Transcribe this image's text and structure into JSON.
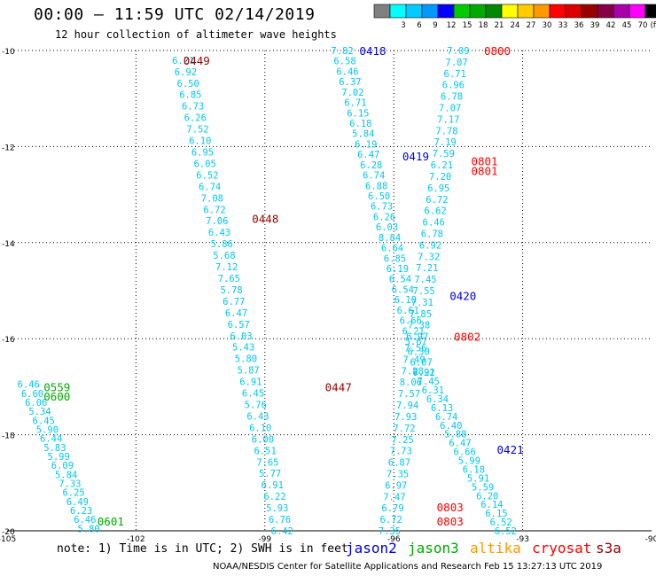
{
  "chart_data": {
    "type": "scatter",
    "title": "00:00 – 11:59 UTC 02/14/2019",
    "subtitle": "12 hour collection of altimeter wave heights",
    "note": "note: 1) Time is in UTC; 2) SWH is in feet",
    "credit": "NOAA/NESDIS Center for Satellite Applications and Research   Feb 15 13:27:13 UTC 2019",
    "xlim": [
      -105,
      -90
    ],
    "ylim": [
      -20,
      -10
    ],
    "xticks": [
      -105,
      -102,
      -99,
      -96,
      -93,
      -90
    ],
    "yticks": [
      -10,
      -12,
      -14,
      -16,
      -18,
      -20
    ],
    "grid": true,
    "colorbar": {
      "unit": "(ft)",
      "bins": [
        {
          "label": "",
          "color": "#808080"
        },
        {
          "label": "3",
          "color": "#00ffff"
        },
        {
          "label": "6",
          "color": "#00ccff"
        },
        {
          "label": "9",
          "color": "#0099ff"
        },
        {
          "label": "12",
          "color": "#0000ff"
        },
        {
          "label": "15",
          "color": "#00cc00"
        },
        {
          "label": "18",
          "color": "#00aa00"
        },
        {
          "label": "21",
          "color": "#008800"
        },
        {
          "label": "24",
          "color": "#ffff00"
        },
        {
          "label": "27",
          "color": "#ffcc00"
        },
        {
          "label": "30",
          "color": "#ff9900"
        },
        {
          "label": "33",
          "color": "#ff0000"
        },
        {
          "label": "36",
          "color": "#dd0000"
        },
        {
          "label": "39",
          "color": "#990000"
        },
        {
          "label": "42",
          "color": "#880044"
        },
        {
          "label": "45",
          "color": "#aa00aa"
        },
        {
          "label": "70",
          "color": "#ff00ff"
        },
        {
          "label": "",
          "color": "#000000"
        }
      ]
    },
    "point_color": "#00c8f0",
    "satellites": [
      {
        "name": "jason2",
        "color": "#0000dd"
      },
      {
        "name": "jason3",
        "color": "#00aa00"
      },
      {
        "name": "altika",
        "color": "#ff9900"
      },
      {
        "name": "cryosat",
        "color": "#ff0000"
      },
      {
        "name": "s3a",
        "color": "#990000"
      }
    ],
    "time_labels": [
      {
        "text": "0449",
        "x": -100.9,
        "y": -10.2,
        "color": "#990000"
      },
      {
        "text": "0448",
        "x": -99.3,
        "y": -13.5,
        "color": "#990000"
      },
      {
        "text": "0447",
        "x": -97.6,
        "y": -17.0,
        "color": "#990000"
      },
      {
        "text": "0418",
        "x": -96.8,
        "y": -10.0,
        "color": "#0000dd"
      },
      {
        "text": "0419",
        "x": -95.8,
        "y": -12.2,
        "color": "#0000dd"
      },
      {
        "text": "0420",
        "x": -94.7,
        "y": -15.1,
        "color": "#0000dd"
      },
      {
        "text": "0421",
        "x": -93.6,
        "y": -18.3,
        "color": "#0000dd"
      },
      {
        "text": "0800",
        "x": -93.9,
        "y": -10.0,
        "color": "#ff0000"
      },
      {
        "text": "0801",
        "x": -94.2,
        "y": -12.3,
        "color": "#ff0000"
      },
      {
        "text": "0801",
        "x": -94.2,
        "y": -12.5,
        "color": "#ff0000"
      },
      {
        "text": "0802",
        "x": -94.6,
        "y": -15.95,
        "color": "#ff0000"
      },
      {
        "text": "0803",
        "x": -95.0,
        "y": -19.5,
        "color": "#ff0000"
      },
      {
        "text": "0803",
        "x": -95.0,
        "y": -19.8,
        "color": "#ff0000"
      },
      {
        "text": "0559",
        "x": -104.15,
        "y": -17.0,
        "color": "#00aa00"
      },
      {
        "text": "0600",
        "x": -104.15,
        "y": -17.2,
        "color": "#00aa00"
      },
      {
        "text": "0601",
        "x": -102.9,
        "y": -19.8,
        "color": "#00aa00"
      }
    ],
    "series": [
      {
        "name": "",
        "x_start": -100.9,
        "x_end": -98.6,
        "y_start": -10.2,
        "y_end": -20.0,
        "values": [
          6.21,
          6.92,
          6.5,
          6.85,
          6.73,
          6.26,
          7.52,
          6.1,
          6.95,
          6.05,
          6.52,
          6.74,
          7.08,
          6.72,
          7.06,
          6.43,
          5.86,
          5.68,
          7.12,
          7.65,
          5.78,
          6.77,
          6.47,
          6.57,
          6.03,
          5.43,
          5.8,
          5.87,
          6.91,
          6.45,
          5.76,
          6.43,
          6.1,
          6.0,
          6.51,
          7.65,
          5.77,
          6.91,
          6.22,
          5.93,
          6.76,
          6.42
        ]
      },
      {
        "name": "",
        "x_start": -97.2,
        "x_end": -95.3,
        "y_start": -10.0,
        "y_end": -16.7,
        "values": [
          7.82,
          6.58,
          6.46,
          6.37,
          7.02,
          6.71,
          6.15,
          6.18,
          5.84,
          6.19,
          6.47,
          6.28,
          6.74,
          6.88,
          6.5,
          6.73,
          6.26,
          6.03,
          8.84,
          6.64,
          6.85,
          6.19,
          6.54,
          6.54,
          6.1,
          6.61,
          6.66,
          6.21,
          5.67,
          6.3,
          6.07,
          6.21
        ]
      },
      {
        "name": "",
        "x_start": -95.3,
        "x_end": -93.4,
        "y_start": -16.7,
        "y_end": -20.0,
        "values": [
          7.92,
          7.45,
          6.31,
          6.34,
          6.13,
          6.74,
          6.4,
          5.88,
          6.47,
          6.66,
          5.99,
          6.18,
          5.91,
          5.59,
          6.2,
          6.14,
          6.15,
          6.52,
          6.52
        ]
      },
      {
        "name": "",
        "x_start": -94.5,
        "x_end": -96.1,
        "y_start": -10.0,
        "y_end": -20.0,
        "values": [
          7.09,
          7.07,
          6.71,
          6.96,
          6.78,
          7.07,
          7.17,
          7.78,
          7.19,
          7.59,
          6.21,
          7.2,
          6.95,
          6.72,
          6.62,
          6.46,
          6.78,
          6.92,
          7.32,
          7.21,
          7.45,
          7.55,
          7.31,
          7.85,
          7.38,
          6.97,
          7.56,
          7.49,
          7.28,
          8.06,
          7.57,
          7.94,
          7.93,
          7.72,
          7.25,
          7.73,
          6.87,
          7.35,
          6.97,
          7.47,
          6.79,
          6.72,
          7.35
        ]
      },
      {
        "name": "",
        "x_start": -104.5,
        "x_end": -103.1,
        "y_start": -16.95,
        "y_end": -19.95,
        "values": [
          6.46,
          6.6,
          6.06,
          5.34,
          6.45,
          5.9,
          6.44,
          5.83,
          5.99,
          6.09,
          5.84,
          7.33,
          6.25,
          6.49,
          6.23,
          6.46,
          5.8
        ]
      }
    ]
  }
}
